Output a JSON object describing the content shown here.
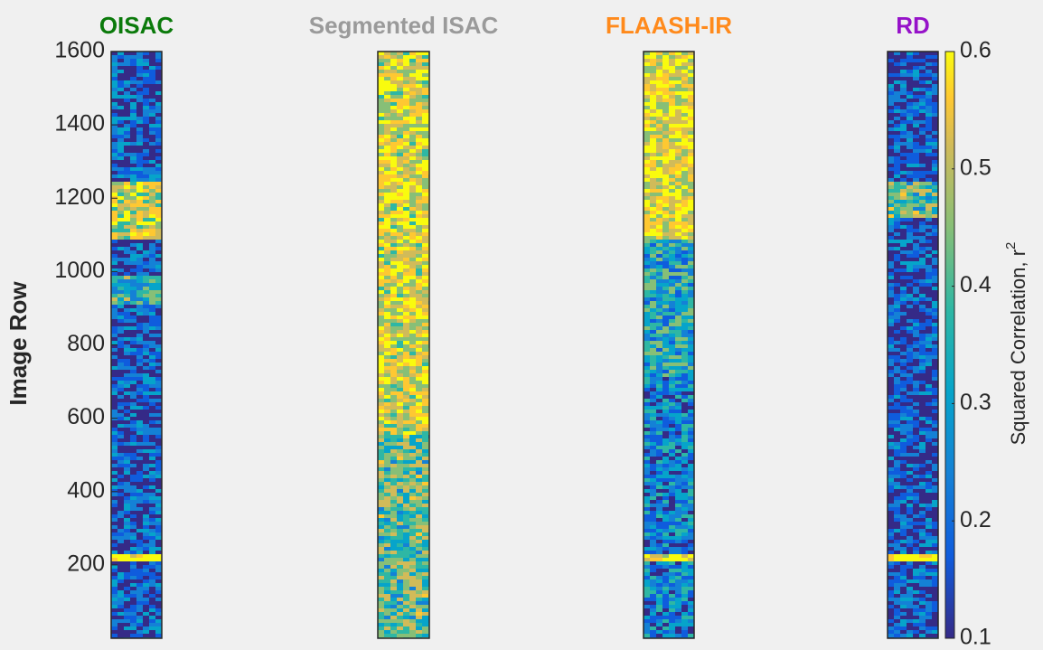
{
  "chart_data": {
    "type": "image",
    "ylabel": "Image Row",
    "ylim": [
      0,
      1600
    ],
    "yticks": [
      200,
      400,
      600,
      800,
      1000,
      1200,
      1400,
      1600
    ],
    "panels": [
      {
        "title": "OISAC",
        "color": "#0b7a0b"
      },
      {
        "title": "Segmented ISAC",
        "color": "#9a9a9a"
      },
      {
        "title": "FLAASH-IR",
        "color": "#ff8a1c"
      },
      {
        "title": "RD",
        "color": "#9612c9"
      }
    ],
    "colorbar": {
      "label": "Squared Correlation, r",
      "label_superscript": "2",
      "clim": [
        0.1,
        0.6
      ],
      "ticks": [
        0.1,
        0.2,
        0.3,
        0.4,
        0.5,
        0.6
      ]
    }
  }
}
